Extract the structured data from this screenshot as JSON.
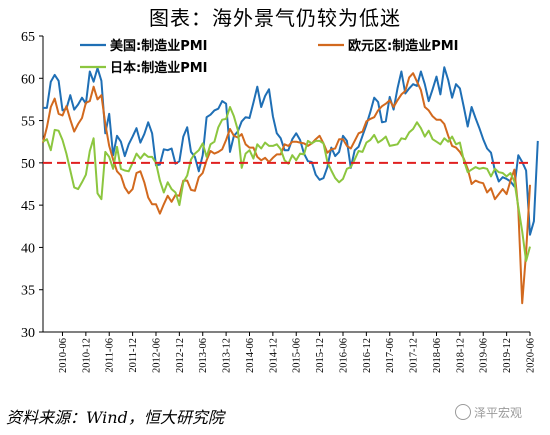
{
  "title": "图表：海外景气仍较为低迷",
  "source": "资料来源：Wind，恒大研究院",
  "watermark": "泽平宏观",
  "chart_data": {
    "type": "line",
    "title": "图表：海外景气仍较为低迷",
    "xlabel": "",
    "ylabel": "",
    "ylim": [
      30,
      65
    ],
    "yticks": [
      30,
      35,
      40,
      45,
      50,
      55,
      60,
      65
    ],
    "x_start": "2010-01",
    "x_end": "2020-06",
    "xtick_labels": [
      "2010-06",
      "2010-12",
      "2011-06",
      "2011-12",
      "2012-06",
      "2012-12",
      "2013-06",
      "2013-12",
      "2014-06",
      "2014-12",
      "2015-06",
      "2015-12",
      "2016-06",
      "2016-12",
      "2017-06",
      "2017-12",
      "2018-06",
      "2018-12",
      "2019-06",
      "2019-12",
      "2020-06"
    ],
    "reference_line": {
      "value": 50,
      "color": "#e02020",
      "style": "dashed"
    },
    "grid": false,
    "legend_placement": "top",
    "series": [
      {
        "name": "美国:制造业PMI",
        "color": "#1f6fb5",
        "values": [
          56.5,
          56.5,
          59.6,
          60.4,
          59.7,
          56.2,
          56.4,
          58.0,
          56.3,
          56.9,
          57.7,
          57.0,
          60.8,
          59.6,
          61.2,
          59.7,
          53.5,
          55.8,
          50.9,
          53.2,
          52.5,
          50.8,
          52.2,
          53.1,
          54.1,
          52.4,
          53.4,
          54.8,
          53.5,
          49.7,
          49.8,
          51.6,
          51.5,
          51.7,
          49.9,
          50.2,
          53.1,
          54.2,
          51.3,
          50.7,
          49.0,
          50.9,
          55.4,
          55.7,
          56.2,
          56.4,
          57.3,
          57.0,
          51.3,
          53.2,
          53.7,
          54.9,
          55.4,
          55.3,
          57.1,
          59.0,
          56.6,
          57.9,
          58.7,
          55.5,
          53.5,
          52.9,
          51.5,
          51.5,
          52.8,
          53.5,
          52.7,
          51.1,
          50.2,
          50.1,
          48.6,
          48.0,
          48.2,
          49.5,
          51.8,
          50.8,
          51.3,
          53.2,
          52.6,
          49.4,
          51.5,
          51.9,
          53.2,
          54.5,
          56.0,
          57.7,
          57.2,
          54.8,
          54.9,
          57.8,
          56.3,
          58.8,
          60.8,
          58.2,
          58.8,
          59.3,
          59.1,
          60.8,
          59.3,
          57.3,
          58.7,
          60.2,
          58.1,
          61.3,
          59.8,
          57.7,
          59.3,
          58.8,
          56.6,
          54.3,
          56.6,
          55.3,
          54.1,
          52.8,
          51.7,
          51.2,
          49.1,
          47.8,
          48.3,
          48.1,
          47.8,
          47.2,
          50.9,
          50.1,
          49.1,
          41.5,
          43.1,
          52.6
        ]
      },
      {
        "name": "欧元区:制造业PMI",
        "color": "#d2691e",
        "values": [
          52.4,
          54.2,
          56.6,
          57.6,
          55.8,
          55.6,
          56.7,
          55.1,
          53.7,
          54.6,
          55.3,
          57.1,
          57.3,
          59.0,
          57.5,
          58.0,
          54.6,
          52.0,
          50.4,
          49.0,
          48.5,
          47.1,
          46.4,
          46.9,
          48.8,
          49.0,
          47.7,
          45.9,
          45.1,
          45.1,
          44.0,
          45.1,
          46.1,
          45.4,
          46.2,
          46.1,
          47.9,
          47.9,
          46.8,
          46.7,
          48.3,
          48.8,
          50.3,
          51.4,
          51.1,
          51.3,
          51.6,
          52.7,
          54.0,
          53.2,
          53.0,
          53.4,
          52.2,
          51.8,
          51.8,
          50.7,
          50.3,
          50.6,
          50.1,
          50.6,
          51.0,
          51.0,
          52.2,
          52.0,
          52.5,
          52.5,
          52.4,
          52.3,
          52.0,
          52.3,
          52.8,
          53.2,
          52.3,
          51.2,
          51.6,
          51.7,
          52.8,
          52.8,
          52.0,
          51.7,
          52.6,
          53.5,
          53.7,
          54.9,
          55.2,
          55.4,
          56.2,
          56.7,
          57.0,
          57.4,
          56.6,
          57.4,
          58.1,
          58.5,
          60.1,
          60.6,
          59.6,
          58.6,
          56.6,
          56.2,
          55.5,
          55.1,
          55.1,
          54.6,
          53.2,
          52.0,
          51.8,
          51.3,
          50.5,
          49.3,
          47.5,
          47.9,
          47.7,
          47.6,
          46.5,
          47.0,
          45.7,
          46.3,
          46.9,
          46.3,
          47.9,
          49.2,
          44.5,
          33.4,
          39.4,
          47.4
        ]
      },
      {
        "name": "日本:制造业PMI",
        "color": "#8cc63f",
        "values": [
          52.5,
          52.8,
          51.5,
          53.9,
          53.8,
          52.7,
          51.1,
          49.1,
          47.1,
          46.9,
          47.7,
          48.6,
          51.4,
          52.9,
          46.4,
          45.7,
          51.3,
          50.7,
          49.3,
          51.9,
          49.3,
          49.1,
          49.0,
          50.0,
          51.1,
          50.5,
          51.1,
          50.7,
          50.7,
          50.0,
          47.9,
          46.5,
          47.7,
          46.9,
          46.5,
          45.0,
          47.7,
          48.5,
          50.4,
          51.1,
          51.5,
          52.3,
          50.7,
          52.2,
          52.5,
          54.2,
          55.1,
          55.2,
          56.6,
          55.5,
          53.9,
          49.4,
          51.1,
          51.5,
          50.5,
          52.2,
          51.7,
          52.4,
          52.0,
          52.0,
          52.2,
          51.6,
          50.3,
          49.9,
          50.9,
          50.3,
          51.1,
          51.0,
          52.6,
          52.3,
          52.6,
          52.6,
          52.3,
          50.1,
          49.1,
          48.2,
          47.7,
          48.1,
          49.3,
          49.5,
          50.4,
          51.4,
          51.3,
          52.4,
          52.7,
          53.3,
          52.4,
          52.7,
          53.1,
          52.0,
          52.1,
          52.2,
          52.9,
          52.8,
          53.6,
          54.0,
          54.8,
          54.1,
          53.1,
          53.8,
          52.8,
          52.5,
          52.2,
          52.9,
          52.5,
          53.1,
          52.2,
          52.4,
          50.3,
          48.9,
          49.2,
          49.5,
          49.3,
          49.4,
          49.3,
          48.4,
          49.3,
          48.9,
          48.8,
          48.4,
          48.8,
          47.8,
          44.8,
          41.9,
          38.4,
          40.1
        ]
      }
    ]
  }
}
